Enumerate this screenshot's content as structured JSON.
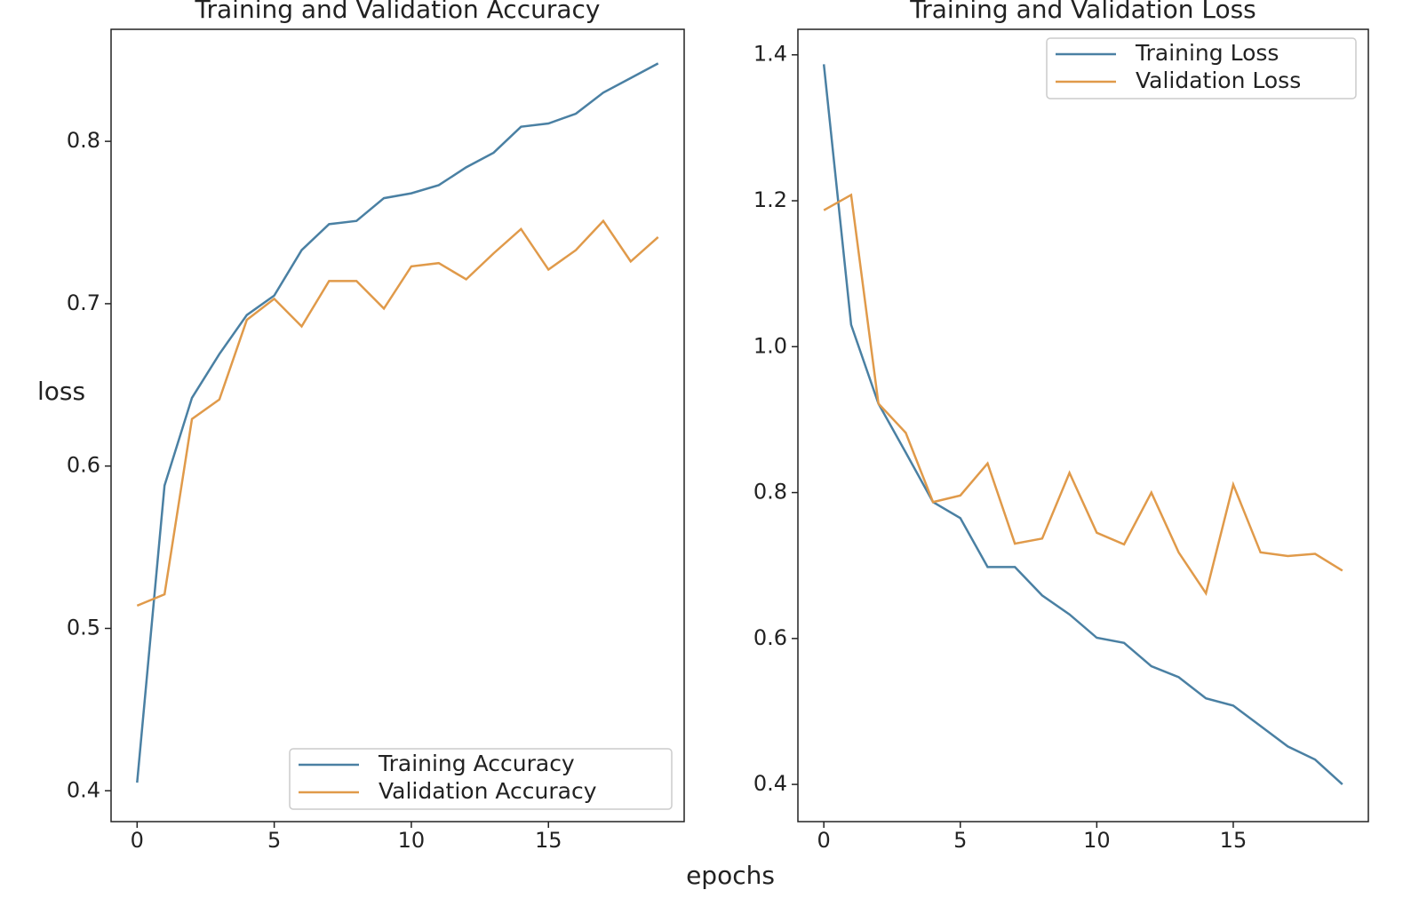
{
  "figure_labels": {
    "y": "loss",
    "x": "epochs"
  },
  "chart_data": [
    {
      "type": "line",
      "title": "Training and Validation Accuracy",
      "x": [
        0,
        1,
        2,
        3,
        4,
        5,
        6,
        7,
        8,
        9,
        10,
        11,
        12,
        13,
        14,
        15,
        16,
        17,
        18,
        19
      ],
      "series": [
        {
          "name": "Training Accuracy",
          "color": "#4a80a3",
          "values": [
            0.405,
            0.588,
            0.642,
            0.669,
            0.693,
            0.705,
            0.733,
            0.749,
            0.751,
            0.765,
            0.768,
            0.773,
            0.784,
            0.793,
            0.809,
            0.811,
            0.817,
            0.83,
            0.839,
            0.848
          ]
        },
        {
          "name": "Validation Accuracy",
          "color": "#e09a4a",
          "values": [
            0.514,
            0.521,
            0.629,
            0.641,
            0.69,
            0.703,
            0.686,
            0.714,
            0.714,
            0.697,
            0.723,
            0.725,
            0.715,
            0.731,
            0.746,
            0.721,
            0.733,
            0.751,
            0.726,
            0.741
          ]
        }
      ],
      "xlim": [
        -0.95,
        19.95
      ],
      "xticks": [
        0,
        5,
        10,
        15
      ],
      "ylim": [
        0.381,
        0.869
      ],
      "yticks": [
        0.4,
        0.5,
        0.6,
        0.7,
        0.8
      ],
      "legend": "lower right"
    },
    {
      "type": "line",
      "title": "Training and Validation Loss",
      "x": [
        0,
        1,
        2,
        3,
        4,
        5,
        6,
        7,
        8,
        9,
        10,
        11,
        12,
        13,
        14,
        15,
        16,
        17,
        18,
        19
      ],
      "series": [
        {
          "name": "Training Loss",
          "color": "#4a80a3",
          "values": [
            1.387,
            1.03,
            0.922,
            0.855,
            0.787,
            0.765,
            0.698,
            0.698,
            0.659,
            0.633,
            0.601,
            0.594,
            0.562,
            0.547,
            0.518,
            0.508,
            0.48,
            0.452,
            0.434,
            0.4
          ]
        },
        {
          "name": "Validation Loss",
          "color": "#e09a4a",
          "values": [
            1.187,
            1.208,
            0.922,
            0.882,
            0.787,
            0.796,
            0.84,
            0.73,
            0.737,
            0.827,
            0.745,
            0.729,
            0.8,
            0.718,
            0.662,
            0.811,
            0.718,
            0.713,
            0.716,
            0.693
          ]
        }
      ],
      "xlim": [
        -0.95,
        19.95
      ],
      "xticks": [
        0,
        5,
        10,
        15
      ],
      "ylim": [
        0.349,
        1.435
      ],
      "yticks": [
        0.4,
        0.6,
        0.8,
        {
          "value": 1,
          "label": "1.0"
        },
        1.2,
        1.4
      ],
      "legend": "upper right"
    }
  ]
}
